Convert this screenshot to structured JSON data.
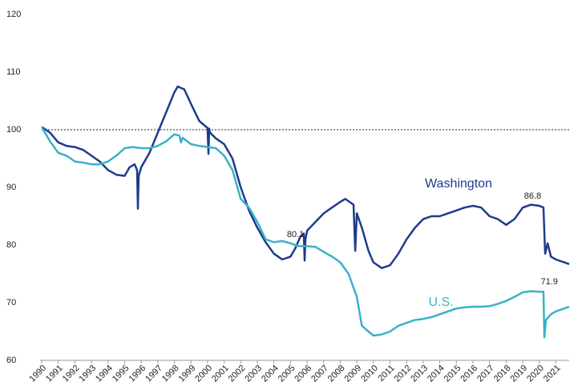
{
  "chart_data": {
    "type": "line",
    "xlim": [
      1990,
      2021.8
    ],
    "xticks": [
      1990,
      1991,
      1992,
      1993,
      1994,
      1995,
      1996,
      1997,
      1998,
      1999,
      2000,
      2001,
      2002,
      2003,
      2004,
      2005,
      2006,
      2007,
      2008,
      2009,
      2010,
      2011,
      2012,
      2013,
      2014,
      2015,
      2016,
      2017,
      2018,
      2019,
      2020,
      2021
    ],
    "ylim": [
      60,
      120
    ],
    "yticks": [
      60,
      70,
      80,
      90,
      100,
      110,
      120
    ],
    "reference_line": 100,
    "grid": false,
    "series": [
      {
        "name": "Washington",
        "color": "#1d3c8c",
        "x": [
          1990,
          1990.5,
          1991,
          1991.5,
          1992,
          1992.5,
          1993,
          1993.5,
          1994,
          1994.5,
          1995,
          1995.3,
          1995.6,
          1995.75,
          1995.8,
          1995.85,
          1996,
          1996.2,
          1996.5,
          1997,
          1997.5,
          1998,
          1998.2,
          1998.6,
          1999,
          1999.5,
          2000,
          2000.05,
          2000.1,
          2000.15,
          2000.5,
          2001,
          2001.5,
          2002,
          2002.5,
          2003,
          2003.5,
          2004,
          2004.5,
          2005,
          2005.3,
          2005.6,
          2005.8,
          2005.85,
          2005.9,
          2006,
          2006.5,
          2007,
          2007.5,
          2008,
          2008.3,
          2008.8,
          2008.9,
          2009,
          2009.3,
          2009.7,
          2010,
          2010.5,
          2011,
          2011.5,
          2012,
          2012.5,
          2013,
          2013.5,
          2014,
          2014.5,
          2015,
          2015.5,
          2016,
          2016.5,
          2017,
          2017.5,
          2018,
          2018.5,
          2019,
          2019.5,
          2020,
          2020.25,
          2020.35,
          2020.5,
          2020.7,
          2021,
          2021.5,
          2021.8
        ],
        "values": [
          100.5,
          99.5,
          97.8,
          97.2,
          97,
          96.5,
          95.5,
          94.5,
          93,
          92.2,
          92,
          93.5,
          94,
          93,
          86.3,
          92,
          93.5,
          94.5,
          96,
          99.5,
          103,
          106.5,
          107.5,
          107,
          104.5,
          101.5,
          100.3,
          95.8,
          100.2,
          99.5,
          98.5,
          97.5,
          95,
          90,
          86,
          83,
          80.5,
          78.5,
          77.5,
          78,
          79.5,
          81.5,
          82,
          77.3,
          81,
          82.5,
          84,
          85.5,
          86.5,
          87.5,
          88,
          87,
          79,
          85.5,
          83,
          79,
          77,
          76,
          76.5,
          78.5,
          81,
          83,
          84.5,
          85,
          85,
          85.5,
          86,
          86.5,
          86.8,
          86.5,
          85,
          84.5,
          83.5,
          84.5,
          86.5,
          87,
          86.8,
          86.5,
          78.5,
          80.3,
          78,
          77.5,
          77,
          76.7
        ]
      },
      {
        "name": "U.S.",
        "color": "#3ab1c9",
        "x": [
          1990,
          1990.5,
          1991,
          1991.5,
          1992,
          1992.5,
          1993,
          1993.5,
          1994,
          1994.5,
          1995,
          1995.5,
          1996,
          1996.5,
          1997,
          1997.5,
          1998,
          1998.3,
          1998.4,
          1998.5,
          1999,
          1999.5,
          2000,
          2000.5,
          2001,
          2001.5,
          2002,
          2002.5,
          2003,
          2003.5,
          2004,
          2004.5,
          2005,
          2005.5,
          2006,
          2006.5,
          2007,
          2007.5,
          2008,
          2008.5,
          2009,
          2009.3,
          2009.7,
          2010,
          2010.5,
          2011,
          2011.5,
          2012,
          2012.5,
          2013,
          2013.5,
          2014,
          2014.5,
          2015,
          2015.5,
          2016,
          2016.5,
          2017,
          2017.5,
          2018,
          2018.5,
          2019,
          2019.5,
          2020,
          2020.25,
          2020.3,
          2020.4,
          2020.7,
          2021,
          2021.5,
          2021.8
        ],
        "values": [
          100.5,
          98,
          96,
          95.5,
          94.5,
          94.3,
          94,
          94,
          94.5,
          95.5,
          96.8,
          97,
          96.8,
          96.8,
          97.2,
          98,
          99.2,
          99,
          97.8,
          98.6,
          97.5,
          97.2,
          97,
          96.8,
          95.5,
          93,
          88,
          86.5,
          84,
          81,
          80.5,
          80.7,
          80.3,
          79.8,
          79.8,
          79.7,
          78.8,
          78,
          77,
          75,
          71,
          66,
          65,
          64.3,
          64.5,
          65,
          66,
          66.5,
          67,
          67.2,
          67.5,
          68,
          68.5,
          69,
          69.2,
          69.3,
          69.3,
          69.4,
          69.8,
          70.3,
          71,
          71.8,
          72,
          71.9,
          71.9,
          64,
          67,
          68,
          68.5,
          69,
          69.3
        ]
      }
    ],
    "annotations": [
      {
        "text": "80.1",
        "x": 2005.3,
        "y": 80.1
      },
      {
        "text": "86.8",
        "x": 2019.6,
        "y": 86.8
      },
      {
        "text": "71.9",
        "x": 2020.6,
        "y": 71.9
      }
    ]
  }
}
